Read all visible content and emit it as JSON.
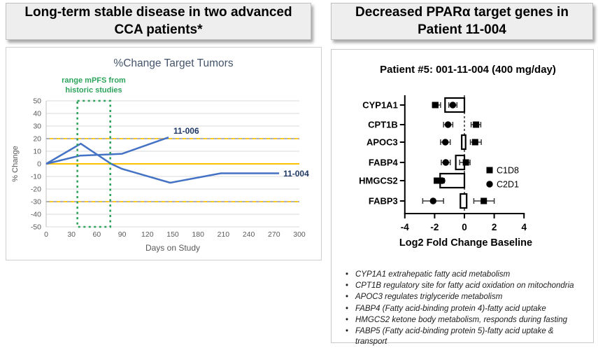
{
  "left_panel": {
    "title": "Long-term stable disease in two advanced CCA patients*"
  },
  "right_panel": {
    "title": "Decreased PPARα target genes in Patient 11-004",
    "bullets": [
      "CYP1A1 extrahepatic fatty acid metabolism",
      "CPT1B regulatory site for fatty acid oxidation on mitochondria",
      "APOC3 regulates triglyceride metabolism",
      "FABP4 (Fatty acid-binding protein 4)-fatty acid uptake",
      "HMGCS2 ketone body metabolism, responds during fasting",
      "FABP5 (Fatty acid-binding protein 5)-fatty acid uptake & transport"
    ]
  },
  "chart_data": [
    {
      "type": "line",
      "title": "%Change Target Tumors",
      "title_color": "#44546A",
      "xlabel": "Days on Study",
      "ylabel": "% Change",
      "xlim": [
        0,
        300
      ],
      "ylim": [
        -50,
        50
      ],
      "xticks": [
        0,
        30,
        60,
        90,
        120,
        150,
        180,
        210,
        240,
        270,
        300
      ],
      "yticks": [
        50,
        40,
        30,
        20,
        10,
        0,
        -10,
        -20,
        -30,
        -40,
        -50
      ],
      "grid": true,
      "axis_text_color": "#595959",
      "grid_color": "#d9d9d9",
      "series": [
        {
          "name": "11-006",
          "color": "#4472C4",
          "label_color": "#1F3864",
          "x": [
            0,
            40,
            75,
            90,
            145
          ],
          "y": [
            0,
            6.5,
            7.5,
            8,
            21
          ],
          "label_x": 166,
          "label_y": 24,
          "label_anchor": "middle"
        },
        {
          "name": "11-004",
          "color": "#4472C4",
          "label_color": "#1F3864",
          "x": [
            0,
            41,
            77,
            90,
            147,
            207,
            276
          ],
          "y": [
            0,
            16,
            0,
            -4,
            -15,
            -7.5,
            -7.5
          ],
          "label_x": 281,
          "label_y": -10,
          "label_anchor": "start"
        }
      ],
      "reference_lines": [
        {
          "y": 20,
          "style": "dashed",
          "colors": [
            "#FFC000",
            "#A6A6A6"
          ]
        },
        {
          "y": 0,
          "style": "solid",
          "colors": [
            "#FFC000"
          ]
        },
        {
          "y": -30,
          "style": "dashed",
          "colors": [
            "#FFC000",
            "#A6A6A6"
          ]
        }
      ],
      "annotation": {
        "text_lines": [
          "range mPFS from",
          "historic studies"
        ],
        "color": "#2EA35C",
        "box": {
          "x1": 37,
          "x2": 76,
          "y1": -50,
          "y2": 50
        }
      }
    },
    {
      "type": "forest",
      "title": "Patient #5: 001-11-004 (400 mg/day)",
      "xlabel": "Log2 Fold Change Baseline",
      "xlim": [
        -4,
        4
      ],
      "xticks": [
        -4,
        -2,
        0,
        2,
        4
      ],
      "zero_line": {
        "x": 0,
        "style": "dashed"
      },
      "legend": [
        {
          "marker": "square",
          "label": "C1D8"
        },
        {
          "marker": "circle",
          "label": "C2D1"
        }
      ],
      "rows": [
        {
          "gene": "CYP1A1",
          "bar": [
            -1.3,
            0
          ],
          "square": {
            "v": -1.95,
            "lo": -2.15,
            "hi": -1.6
          },
          "circle": {
            "v": -0.78,
            "lo": -1.05,
            "hi": -0.5
          }
        },
        {
          "gene": "CPT1B",
          "bar": null,
          "square": {
            "v": 0.78,
            "lo": 0.45,
            "hi": 1.1
          },
          "circle": {
            "v": -1.1,
            "lo": -1.4,
            "hi": -0.78
          }
        },
        {
          "gene": "APOC3",
          "bar": [
            -0.18,
            0.08
          ],
          "square": {
            "v": 0.72,
            "lo": 0.4,
            "hi": 1.13
          },
          "circle": {
            "v": -1.28,
            "lo": -1.6,
            "hi": -0.95
          }
        },
        {
          "gene": "FABP4",
          "bar": [
            -0.58,
            0
          ],
          "square": {
            "v": 0.1,
            "lo": -0.32,
            "hi": 0.38
          },
          "circle": {
            "v": -1.25,
            "lo": -1.55,
            "hi": -0.95
          }
        },
        {
          "gene": "HMGCS2",
          "bar": [
            -1.63,
            0
          ],
          "square": {
            "v": -1.85,
            "lo": -2.0,
            "hi": -1.7
          },
          "circle": {
            "v": -1.5,
            "lo": -1.65,
            "hi": -1.35
          }
        },
        {
          "gene": "FABP3",
          "bar": [
            -0.27,
            0.15
          ],
          "square": {
            "v": 1.3,
            "lo": 0.63,
            "hi": 2.0
          },
          "circle": {
            "v": -2.1,
            "lo": -2.8,
            "hi": -1.4
          }
        }
      ]
    }
  ]
}
